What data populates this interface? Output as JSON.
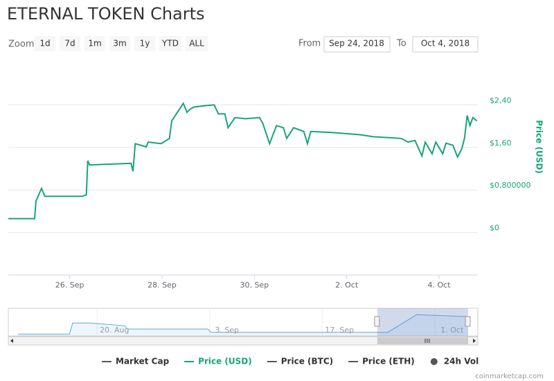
{
  "chart_data": {
    "type": "line",
    "title": "ETERNAL TOKEN Charts",
    "x": [
      24.67,
      25.24,
      25.27,
      25.39,
      25.46,
      26.28,
      26.36,
      26.39,
      26.43,
      27.33,
      27.37,
      27.42,
      27.66,
      27.7,
      27.98,
      28.16,
      28.21,
      28.31,
      28.46,
      28.54,
      28.61,
      28.69,
      28.98,
      29.13,
      29.22,
      29.36,
      29.43,
      29.58,
      29.81,
      30.11,
      30.18,
      30.33,
      30.48,
      30.63,
      30.7,
      30.85,
      31.07,
      31.15,
      31.22,
      31.67,
      32.28,
      32.58,
      33.18,
      33.33,
      33.48,
      33.63,
      33.7,
      33.85,
      33.93,
      34.08,
      34.15,
      34.3,
      34.4,
      34.49,
      34.55,
      34.61,
      34.67,
      34.73,
      34.82
    ],
    "series": [
      {
        "name": "Market Cap",
        "color": "#555555",
        "visible": false
      },
      {
        "name": "Price (USD)",
        "color": "#16a47a",
        "visible": true,
        "values": [
          0.26,
          0.26,
          0.59,
          0.83,
          0.68,
          0.68,
          0.71,
          1.35,
          1.27,
          1.3,
          1.15,
          1.67,
          1.61,
          1.7,
          1.67,
          1.77,
          2.1,
          2.23,
          2.43,
          2.26,
          2.32,
          2.36,
          2.39,
          2.4,
          2.23,
          2.23,
          1.97,
          2.16,
          2.14,
          2.16,
          2.06,
          1.67,
          2.01,
          1.97,
          1.77,
          1.97,
          1.9,
          1.67,
          1.9,
          1.88,
          1.84,
          1.8,
          1.77,
          1.7,
          1.73,
          1.44,
          1.7,
          1.48,
          1.7,
          1.48,
          1.68,
          1.64,
          1.42,
          1.57,
          1.77,
          2.2,
          2.01,
          2.16,
          2.1
        ]
      },
      {
        "name": "Price (BTC)",
        "color": "#555555",
        "visible": false
      },
      {
        "name": "Price (ETH)",
        "color": "#555555",
        "visible": false
      },
      {
        "name": "24h Vol",
        "color": "#555555",
        "visible": false,
        "marker": "circle"
      }
    ],
    "xlim": [
      24.67,
      34.84
    ],
    "xticks": [
      {
        "value": 26,
        "label": "26. Sep"
      },
      {
        "value": 28,
        "label": "28. Sep"
      },
      {
        "value": 30,
        "label": "30. Sep"
      },
      {
        "value": 32,
        "label": "2. Oct"
      },
      {
        "value": 34,
        "label": "4. Oct"
      }
    ],
    "ylim": [
      -0.8,
      3.2
    ],
    "yticks": [
      {
        "value": 2.4,
        "label": "$2,40"
      },
      {
        "value": 1.6,
        "label": "$1,60"
      },
      {
        "value": 0.8,
        "label": "$0,800000"
      },
      {
        "value": 0,
        "label": "$0"
      }
    ],
    "y_label": "Price (USD)",
    "grid": true
  },
  "navigator": {
    "x": [
      -12,
      -5.6,
      -5.2,
      -3,
      1.3,
      1.6,
      11.6,
      12,
      34,
      37.6,
      44
    ],
    "values": [
      0.2,
      0.2,
      1.4,
      1.4,
      1.1,
      0.75,
      0.75,
      0.4,
      0.4,
      2.3,
      2.1
    ],
    "xlim": [
      -12,
      44
    ],
    "ylim": [
      0,
      2.85
    ],
    "xticks": [
      {
        "value": 0,
        "label": "20. Aug"
      },
      {
        "value": 14,
        "label": "3. Sep"
      },
      {
        "value": 28,
        "label": "17. Sep"
      },
      {
        "value": 42,
        "label": "1. Oct"
      }
    ],
    "range": [
      32.7,
      44
    ]
  },
  "controls": {
    "zoom_label": "Zoom",
    "zoom_buttons": [
      "1d",
      "7d",
      "1m",
      "3m",
      "1y",
      "YTD",
      "ALL"
    ],
    "from_label": "From",
    "from_value": "Sep 24, 2018",
    "to_label": "To",
    "to_value": "Oct 4, 2018"
  },
  "credit": "coinmarketcap.com"
}
